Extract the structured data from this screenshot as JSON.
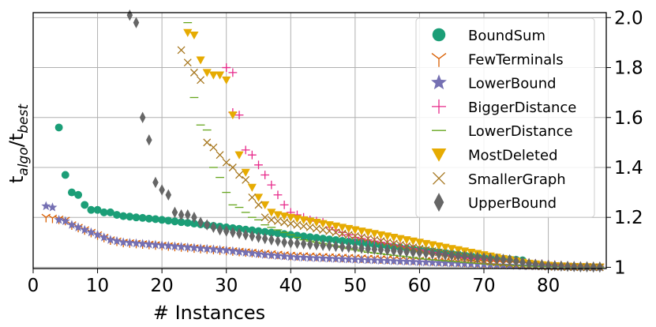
{
  "chart_data": {
    "type": "scatter",
    "xlabel": "# Instances",
    "ylabel": "t_algo/t_best",
    "ylabel_main": "t",
    "ylabel_sub1": "algo",
    "ylabel_slash": "/t",
    "ylabel_sub2": "best",
    "xlim": [
      0,
      89
    ],
    "ylim": [
      0.995,
      2.02
    ],
    "x_ticks": [
      0,
      10,
      20,
      30,
      40,
      50,
      60,
      70,
      80
    ],
    "y_ticks": [
      1,
      1.2,
      1.4,
      1.6,
      1.8,
      2.0
    ],
    "y_tick_labels": [
      "1",
      "1.2",
      "1.4",
      "1.6",
      "1.8",
      "2.0"
    ],
    "grid": true,
    "legend_position": "top-right",
    "series": [
      {
        "name": "BoundSum",
        "marker": "circle",
        "color": "#1b9e77",
        "x": [
          4,
          5,
          6,
          7,
          8,
          9,
          10,
          11,
          12,
          13,
          14,
          15,
          16,
          17,
          18,
          19,
          20,
          21,
          22,
          23,
          24,
          25,
          26,
          27,
          28,
          29,
          30,
          31,
          32,
          33,
          34,
          35,
          36,
          37,
          38,
          39,
          40,
          41,
          42,
          43,
          44,
          45,
          46,
          47,
          48,
          49,
          50,
          51,
          52,
          53,
          54,
          55,
          56,
          57,
          58,
          59,
          60,
          61,
          62,
          63,
          64,
          65,
          66,
          67,
          68,
          69,
          70,
          71,
          72,
          73,
          74,
          75,
          76
        ],
        "y": [
          1.56,
          1.37,
          1.3,
          1.29,
          1.25,
          1.23,
          1.23,
          1.22,
          1.22,
          1.21,
          1.205,
          1.203,
          1.2,
          1.198,
          1.195,
          1.193,
          1.19,
          1.187,
          1.184,
          1.181,
          1.178,
          1.175,
          1.172,
          1.169,
          1.166,
          1.163,
          1.16,
          1.157,
          1.154,
          1.151,
          1.148,
          1.145,
          1.142,
          1.139,
          1.136,
          1.133,
          1.13,
          1.127,
          1.124,
          1.121,
          1.118,
          1.115,
          1.112,
          1.109,
          1.106,
          1.103,
          1.1,
          1.097,
          1.094,
          1.091,
          1.088,
          1.085,
          1.082,
          1.079,
          1.076,
          1.073,
          1.07,
          1.067,
          1.064,
          1.061,
          1.058,
          1.055,
          1.052,
          1.049,
          1.046,
          1.043,
          1.04,
          1.038,
          1.036,
          1.034,
          1.032,
          1.03,
          1.028
        ]
      },
      {
        "name": "FewTerminals",
        "marker": "tri_down",
        "color": "#d95f02",
        "x": [
          2,
          3,
          4,
          5,
          6,
          7,
          8,
          9,
          10,
          11,
          12,
          13,
          14,
          15,
          16,
          17,
          18,
          19,
          20,
          21,
          22,
          23,
          24,
          25,
          26,
          27,
          28,
          29,
          30,
          31,
          32,
          33,
          34,
          35,
          36,
          37,
          38,
          39,
          40,
          41,
          42,
          43,
          44,
          45,
          46,
          47,
          48,
          49,
          50,
          51,
          52,
          53,
          54,
          55,
          56,
          57,
          58,
          59,
          60,
          61,
          62,
          63,
          64,
          65,
          66,
          67,
          68,
          69,
          70,
          71,
          72,
          73,
          74,
          75,
          76,
          77,
          78,
          79,
          80,
          81,
          82,
          83,
          84,
          85,
          86,
          87,
          88
        ],
        "y": [
          1.2,
          1.197,
          1.193,
          1.188,
          1.17,
          1.16,
          1.15,
          1.14,
          1.13,
          1.12,
          1.11,
          1.105,
          1.1,
          1.098,
          1.096,
          1.094,
          1.092,
          1.09,
          1.088,
          1.086,
          1.084,
          1.082,
          1.08,
          1.078,
          1.076,
          1.074,
          1.072,
          1.07,
          1.068,
          1.066,
          1.064,
          1.062,
          1.06,
          1.058,
          1.056,
          1.054,
          1.052,
          1.05,
          1.048,
          1.047,
          1.046,
          1.045,
          1.044,
          1.043,
          1.042,
          1.041,
          1.04,
          1.039,
          1.038,
          1.037,
          1.036,
          1.035,
          1.034,
          1.033,
          1.032,
          1.031,
          1.03,
          1.029,
          1.028,
          1.027,
          1.026,
          1.025,
          1.024,
          1.023,
          1.022,
          1.021,
          1.02,
          1.019,
          1.018,
          1.017,
          1.016,
          1.015,
          1.014,
          1.013,
          1.012,
          1.011,
          1.01,
          1.009,
          1.008,
          1.007,
          1.006,
          1.005,
          1.004,
          1.003,
          1.003,
          1.002,
          1.001
        ]
      },
      {
        "name": "LowerBound",
        "marker": "star",
        "color": "#7570b3",
        "x": [
          2,
          3,
          4,
          5,
          6,
          7,
          8,
          9,
          10,
          11,
          12,
          13,
          14,
          15,
          16,
          17,
          18,
          19,
          20,
          21,
          22,
          23,
          24,
          25,
          26,
          27,
          28,
          29,
          30,
          31,
          32,
          33,
          34,
          35,
          36,
          37,
          38,
          39,
          40,
          41,
          42,
          43,
          44,
          45,
          46,
          47,
          48,
          49,
          50,
          51,
          52,
          53,
          54,
          55,
          56,
          57,
          58,
          59,
          60,
          61,
          62,
          63,
          64,
          65,
          66,
          67,
          68,
          69,
          70,
          71,
          72,
          73,
          74,
          75,
          76,
          77,
          78,
          79,
          80,
          81,
          82,
          83,
          84,
          85,
          86,
          87,
          88
        ],
        "y": [
          1.245,
          1.24,
          1.19,
          1.185,
          1.17,
          1.16,
          1.15,
          1.14,
          1.13,
          1.12,
          1.11,
          1.105,
          1.1,
          1.098,
          1.096,
          1.094,
          1.092,
          1.09,
          1.088,
          1.086,
          1.084,
          1.082,
          1.08,
          1.078,
          1.076,
          1.074,
          1.072,
          1.07,
          1.068,
          1.065,
          1.062,
          1.059,
          1.056,
          1.053,
          1.05,
          1.048,
          1.046,
          1.044,
          1.042,
          1.04,
          1.039,
          1.038,
          1.037,
          1.036,
          1.035,
          1.034,
          1.033,
          1.032,
          1.031,
          1.03,
          1.029,
          1.028,
          1.027,
          1.026,
          1.025,
          1.024,
          1.023,
          1.022,
          1.021,
          1.02,
          1.019,
          1.018,
          1.017,
          1.016,
          1.015,
          1.014,
          1.013,
          1.012,
          1.011,
          1.01,
          1.009,
          1.008,
          1.007,
          1.006,
          1.005,
          1.005,
          1.004,
          1.004,
          1.003,
          1.003,
          1.002,
          1.002,
          1.001,
          1.001,
          1.001,
          1.0,
          1.0
        ]
      },
      {
        "name": "BiggerDistance",
        "marker": "plus",
        "color": "#e7298a",
        "x": [
          30,
          31,
          31,
          32,
          33,
          34,
          35,
          36,
          37,
          38,
          39,
          40,
          41,
          42,
          43,
          44,
          45,
          46,
          47,
          48,
          49,
          50,
          51,
          52,
          53,
          54,
          55,
          56,
          57,
          58,
          59,
          60,
          61,
          62,
          63,
          64,
          65,
          66,
          67,
          68,
          69,
          70,
          71,
          72,
          73,
          74,
          75,
          76,
          77,
          78,
          79,
          80,
          81,
          82,
          83,
          84,
          85,
          86,
          87,
          88
        ],
        "y": [
          1.8,
          1.78,
          1.62,
          1.61,
          1.47,
          1.45,
          1.41,
          1.37,
          1.33,
          1.29,
          1.25,
          1.22,
          1.21,
          1.2,
          1.19,
          1.185,
          1.18,
          1.16,
          1.15,
          1.14,
          1.13,
          1.12,
          1.115,
          1.11,
          1.105,
          1.1,
          1.095,
          1.09,
          1.085,
          1.08,
          1.075,
          1.07,
          1.065,
          1.06,
          1.055,
          1.05,
          1.045,
          1.04,
          1.038,
          1.036,
          1.034,
          1.032,
          1.03,
          1.028,
          1.026,
          1.024,
          1.022,
          1.02,
          1.018,
          1.016,
          1.014,
          1.012,
          1.01,
          1.008,
          1.006,
          1.005,
          1.004,
          1.003,
          1.002,
          1.001
        ]
      },
      {
        "name": "LowerDistance",
        "marker": "hline",
        "color": "#66a61e",
        "x": [
          24,
          25,
          26,
          27,
          28,
          29,
          30,
          31,
          32,
          33,
          34,
          35,
          36,
          37,
          38,
          39,
          40,
          41,
          42,
          43,
          44,
          45,
          46,
          47,
          48,
          49,
          50,
          51,
          52,
          53,
          54,
          55,
          56,
          57,
          58,
          59,
          60,
          61,
          62,
          63,
          64,
          65,
          66,
          67,
          68,
          69,
          70,
          71,
          72,
          73,
          74,
          75,
          76,
          77,
          78,
          79,
          80,
          81,
          82,
          83,
          84,
          85,
          86,
          87,
          88
        ],
        "y": [
          1.98,
          1.68,
          1.57,
          1.55,
          1.4,
          1.36,
          1.3,
          1.25,
          1.24,
          1.22,
          1.2,
          1.19,
          1.17,
          1.16,
          1.15,
          1.14,
          1.13,
          1.12,
          1.11,
          1.105,
          1.1,
          1.095,
          1.09,
          1.085,
          1.08,
          1.075,
          1.07,
          1.065,
          1.06,
          1.057,
          1.054,
          1.051,
          1.048,
          1.045,
          1.042,
          1.039,
          1.036,
          1.033,
          1.03,
          1.028,
          1.026,
          1.024,
          1.022,
          1.02,
          1.018,
          1.016,
          1.014,
          1.012,
          1.01,
          1.009,
          1.008,
          1.007,
          1.006,
          1.005,
          1.004,
          1.003,
          1.003,
          1.002,
          1.002,
          1.001,
          1.001,
          1.001,
          1.0,
          1.0,
          1.0
        ]
      },
      {
        "name": "MostDeleted",
        "marker": "triangle_down",
        "color": "#e6ab02",
        "x": [
          24,
          25,
          26,
          27,
          28,
          29,
          30,
          31,
          32,
          33,
          34,
          35,
          36,
          37,
          38,
          39,
          40,
          41,
          42,
          43,
          44,
          45,
          46,
          47,
          48,
          49,
          50,
          51,
          52,
          53,
          54,
          55,
          56,
          57,
          58,
          59,
          60,
          61,
          62,
          63,
          64,
          65,
          66,
          67,
          68,
          69,
          70,
          71,
          72,
          73,
          74,
          75,
          76,
          77,
          78,
          79,
          80,
          81,
          82,
          83,
          84,
          85,
          86,
          87,
          88
        ],
        "y": [
          1.94,
          1.93,
          1.83,
          1.78,
          1.77,
          1.77,
          1.75,
          1.61,
          1.45,
          1.38,
          1.32,
          1.28,
          1.25,
          1.22,
          1.21,
          1.205,
          1.2,
          1.195,
          1.19,
          1.185,
          1.18,
          1.175,
          1.17,
          1.165,
          1.16,
          1.155,
          1.15,
          1.145,
          1.14,
          1.135,
          1.13,
          1.125,
          1.12,
          1.115,
          1.11,
          1.105,
          1.1,
          1.095,
          1.09,
          1.085,
          1.08,
          1.075,
          1.07,
          1.065,
          1.06,
          1.055,
          1.05,
          1.045,
          1.04,
          1.035,
          1.03,
          1.025,
          1.02,
          1.016,
          1.013,
          1.01,
          1.008,
          1.006,
          1.005,
          1.004,
          1.003,
          1.002,
          1.002,
          1.001,
          1.001
        ]
      },
      {
        "name": "SmallerGraph",
        "marker": "x",
        "color": "#a6761d",
        "x": [
          23,
          24,
          25,
          26,
          27,
          28,
          29,
          30,
          31,
          32,
          33,
          34,
          35,
          36,
          37,
          38,
          39,
          40,
          41,
          42,
          43,
          44,
          45,
          46,
          47,
          48,
          49,
          50,
          51,
          52,
          53,
          54,
          55,
          56,
          57,
          58,
          59,
          60,
          61,
          62,
          63,
          64,
          65,
          66,
          67,
          68,
          69,
          70,
          71,
          72,
          73,
          74,
          75,
          76,
          77,
          78,
          79,
          80,
          81,
          82,
          83,
          84,
          85,
          86,
          87,
          88
        ],
        "y": [
          1.87,
          1.82,
          1.78,
          1.75,
          1.5,
          1.48,
          1.45,
          1.42,
          1.4,
          1.37,
          1.35,
          1.28,
          1.25,
          1.2,
          1.19,
          1.185,
          1.18,
          1.175,
          1.17,
          1.165,
          1.16,
          1.155,
          1.15,
          1.145,
          1.14,
          1.135,
          1.13,
          1.125,
          1.12,
          1.115,
          1.11,
          1.105,
          1.1,
          1.095,
          1.09,
          1.085,
          1.08,
          1.075,
          1.07,
          1.065,
          1.06,
          1.055,
          1.05,
          1.045,
          1.04,
          1.035,
          1.03,
          1.026,
          1.022,
          1.019,
          1.016,
          1.013,
          1.01,
          1.008,
          1.006,
          1.005,
          1.004,
          1.003,
          1.002,
          1.002,
          1.001,
          1.001,
          1.0,
          1.0,
          1.0,
          1.0
        ]
      },
      {
        "name": "UpperBound",
        "marker": "diamond",
        "color": "#666666",
        "x": [
          15,
          16,
          17,
          18,
          19,
          20,
          21,
          22,
          23,
          24,
          25,
          26,
          27,
          28,
          29,
          30,
          31,
          32,
          33,
          34,
          35,
          36,
          37,
          38,
          39,
          40,
          41,
          42,
          43,
          44,
          45,
          46,
          47,
          48,
          49,
          50,
          51,
          52,
          53,
          54,
          55,
          56,
          57,
          58,
          59,
          60,
          61,
          62,
          63,
          64,
          65,
          66,
          67,
          68,
          69,
          70,
          71,
          72,
          73,
          74,
          75,
          76,
          77,
          78,
          79,
          80,
          81,
          82,
          83,
          84,
          85,
          86,
          87,
          88
        ],
        "y": [
          2.01,
          1.98,
          1.6,
          1.51,
          1.34,
          1.31,
          1.29,
          1.22,
          1.21,
          1.21,
          1.2,
          1.18,
          1.17,
          1.16,
          1.15,
          1.145,
          1.14,
          1.135,
          1.13,
          1.125,
          1.12,
          1.115,
          1.11,
          1.105,
          1.1,
          1.098,
          1.096,
          1.094,
          1.092,
          1.09,
          1.088,
          1.086,
          1.084,
          1.082,
          1.08,
          1.078,
          1.076,
          1.074,
          1.072,
          1.07,
          1.068,
          1.066,
          1.064,
          1.062,
          1.06,
          1.058,
          1.056,
          1.054,
          1.052,
          1.05,
          1.048,
          1.046,
          1.044,
          1.042,
          1.04,
          1.038,
          1.036,
          1.034,
          1.032,
          1.03,
          1.025,
          1.02,
          1.015,
          1.012,
          1.01,
          1.008,
          1.006,
          1.005,
          1.004,
          1.003,
          1.002,
          1.002,
          1.001,
          1.001
        ]
      }
    ]
  }
}
